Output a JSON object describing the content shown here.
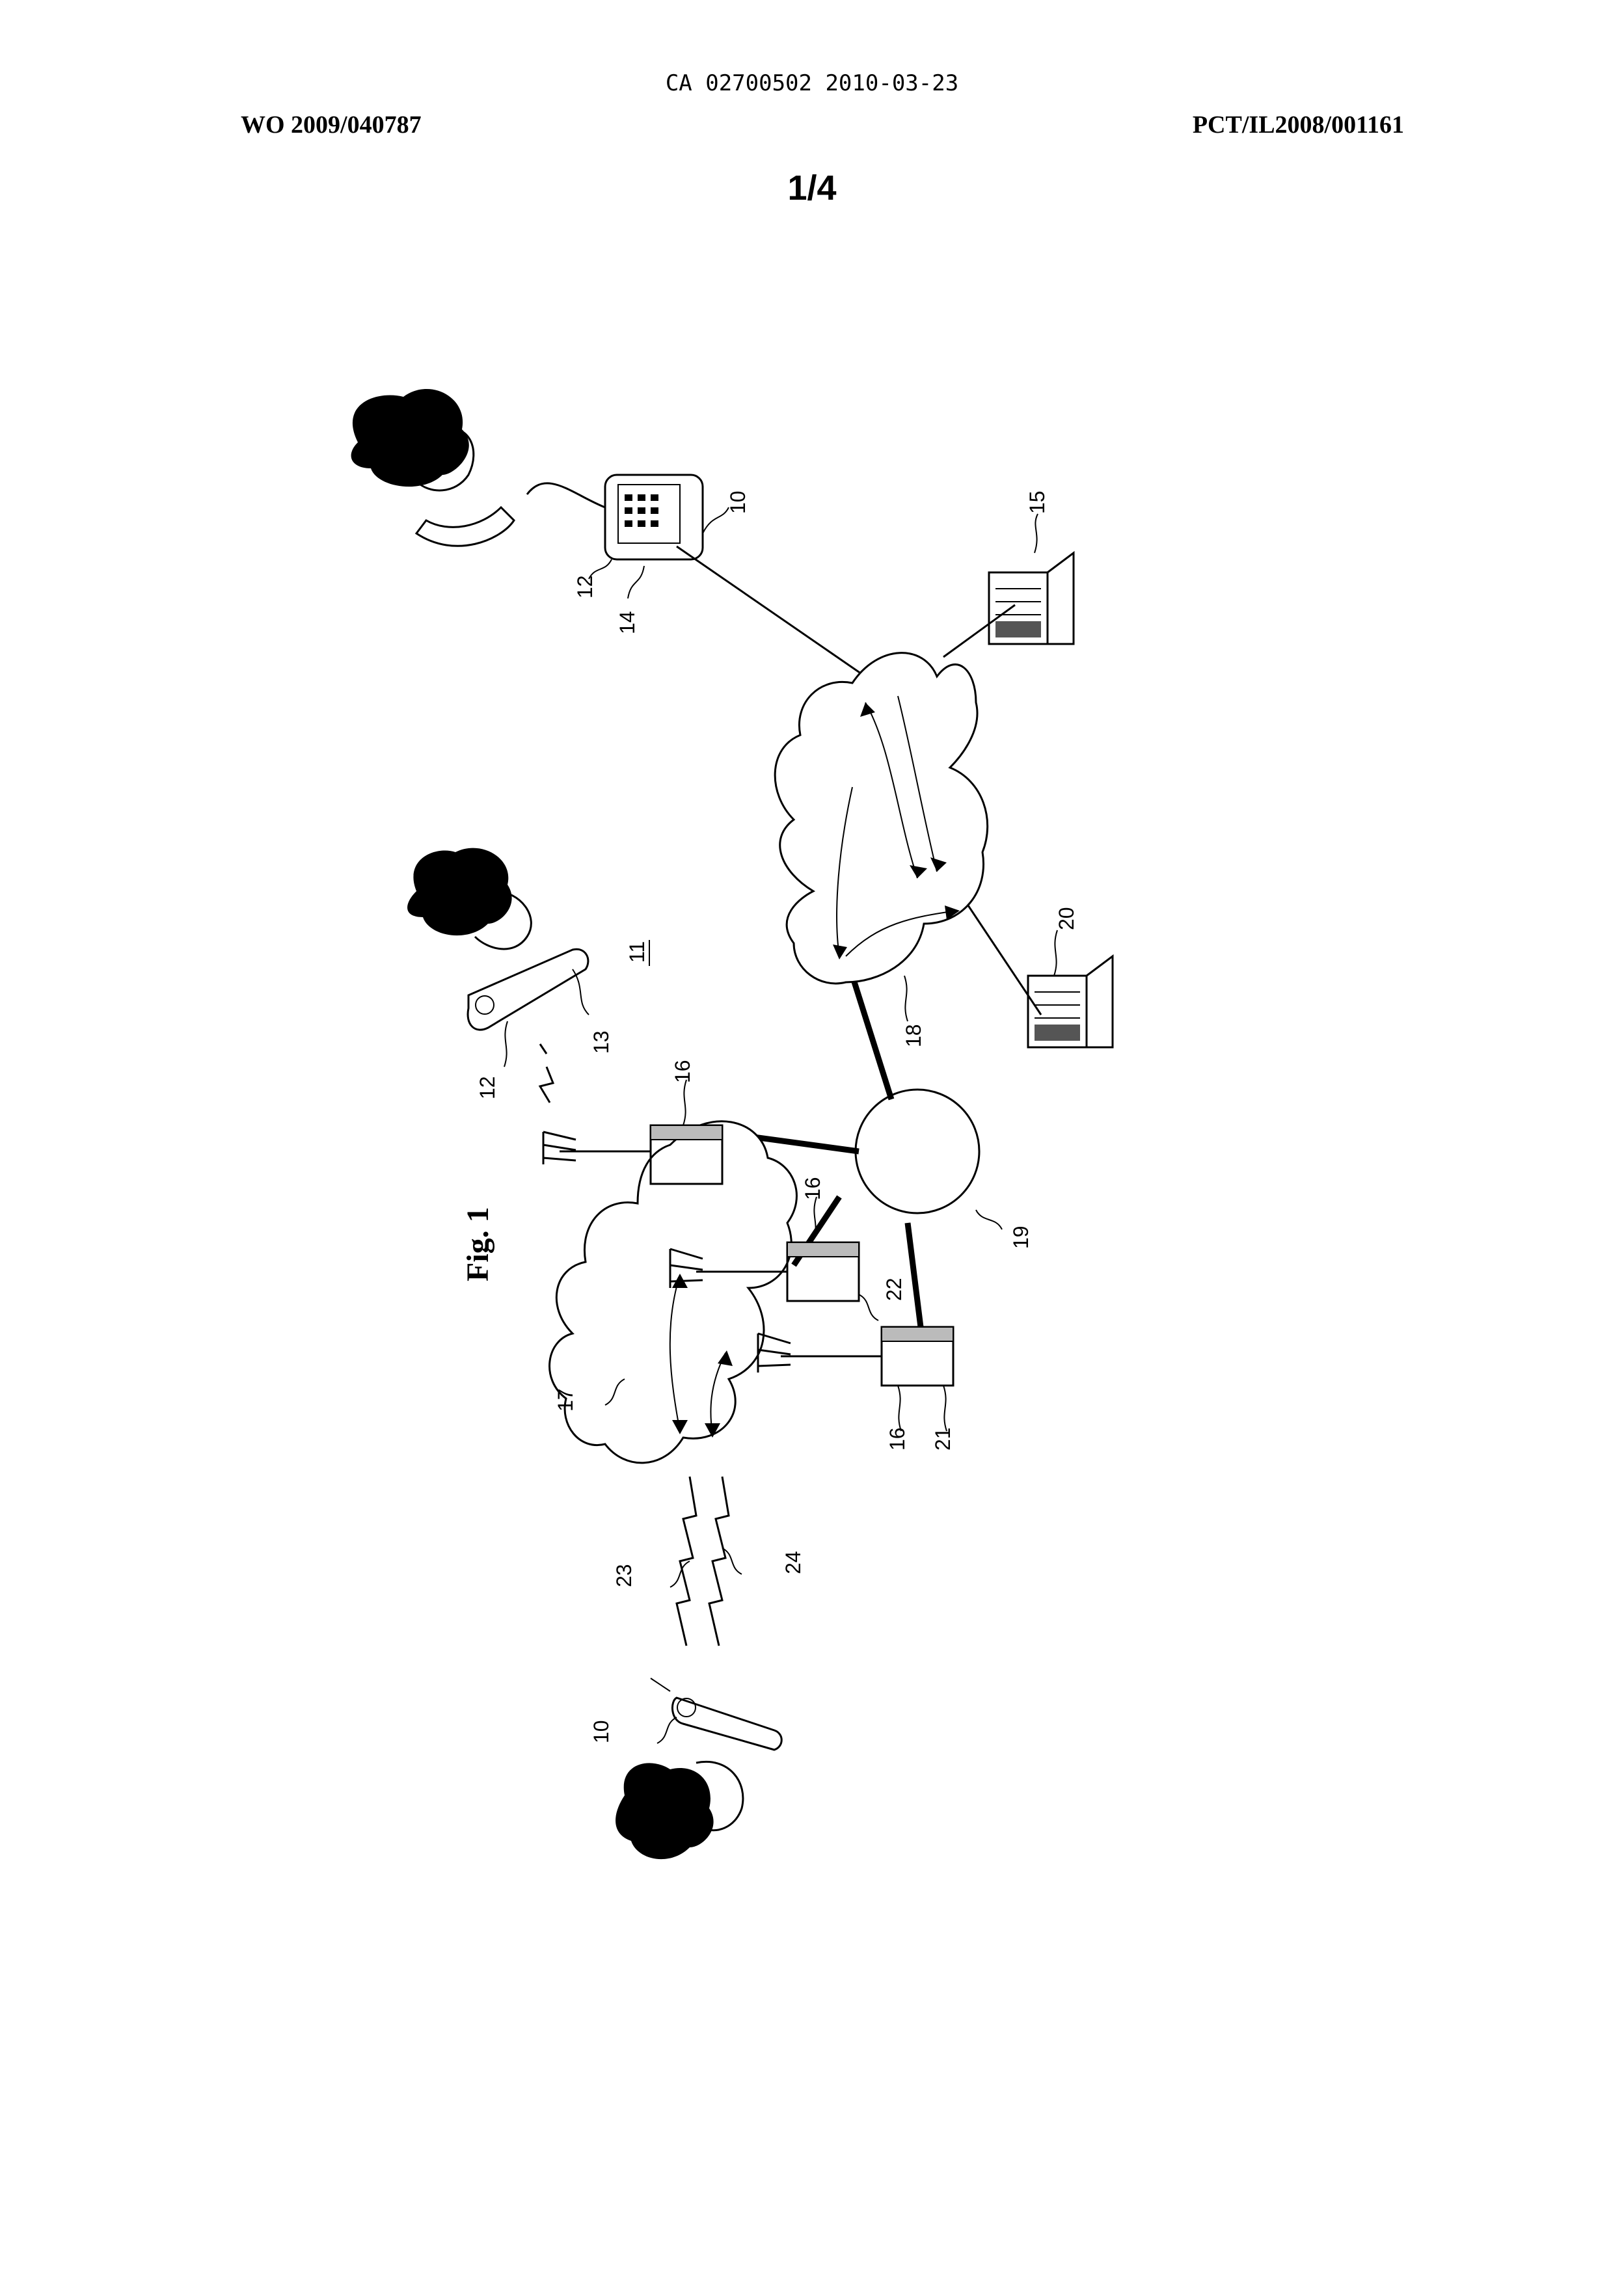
{
  "header": {
    "ca_line": "CA 02700502 2010-03-23",
    "wo_number": "WO 2009/040787",
    "pct_number": "PCT/IL2008/001161",
    "sheet": "1/4"
  },
  "figure": {
    "caption": "Fig. 1",
    "system_label": "11",
    "reference_numerals": {
      "r10_phone": "10",
      "r12_phone": "12",
      "r14": "14",
      "r15": "15",
      "r20": "20",
      "r18": "18",
      "r19": "19",
      "r12_mobile": "12",
      "r13": "13",
      "r16_top": "16",
      "r16_mid": "16",
      "r22": "22",
      "r16_low": "16",
      "r21": "21",
      "r17": "17",
      "r23": "23",
      "r24": "24",
      "r10_mobile": "10"
    },
    "icons": [
      "landline-phone-icon",
      "mobile-phone-icon",
      "server-icon",
      "cell-antenna-icon",
      "base-station-icon",
      "network-cloud-icon",
      "person-head-icon",
      "radio-link-icon"
    ]
  }
}
